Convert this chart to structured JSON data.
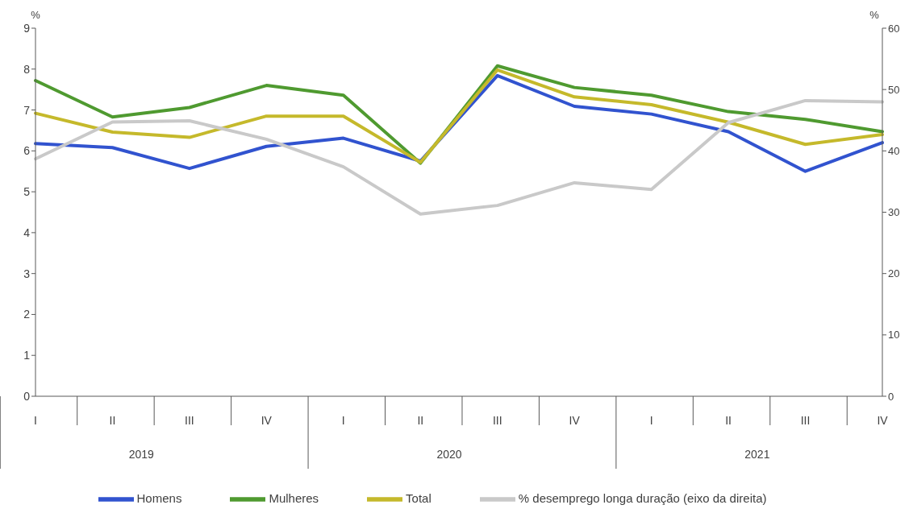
{
  "chart_data": {
    "type": "line",
    "ylabel": "%",
    "y2label": "%",
    "categories": [
      "I",
      "II",
      "III",
      "IV",
      "I",
      "II",
      "III",
      "IV",
      "I",
      "II",
      "III",
      "IV"
    ],
    "annotations": [
      "2019",
      "2020",
      "2021"
    ],
    "series": [
      {
        "name": "Homens",
        "color": "#3153cf",
        "values": [
          6.18,
          6.08,
          5.57,
          6.11,
          6.31,
          5.75,
          7.84,
          7.09,
          6.9,
          6.47,
          5.5,
          6.2
        ]
      },
      {
        "name": "Mulheres",
        "color": "#4f9a30",
        "values": [
          7.72,
          6.83,
          7.06,
          7.6,
          7.36,
          5.7,
          8.08,
          7.55,
          7.36,
          6.96,
          6.77,
          6.47
        ]
      },
      {
        "name": "Total",
        "color": "#c5b92b",
        "values": [
          6.92,
          6.46,
          6.33,
          6.85,
          6.85,
          5.72,
          7.98,
          7.32,
          7.13,
          6.7,
          6.16,
          6.4
        ]
      },
      {
        "name": "% desemprego longa duração (eixo da direita)",
        "color": "#c9c9c9",
        "axis": "y2",
        "values": [
          38.7,
          44.7,
          44.9,
          41.9,
          37.4,
          29.7,
          31.1,
          34.8,
          33.7,
          44.6,
          48.2,
          48.0
        ]
      }
    ],
    "ylim": [
      0,
      9
    ],
    "yticks": [
      0,
      1,
      2,
      3,
      4,
      5,
      6,
      7,
      8,
      9
    ],
    "y2lim": [
      0,
      60
    ],
    "y2ticks": [
      0,
      10,
      20,
      30,
      40,
      50,
      60
    ],
    "legend": "bottom"
  }
}
